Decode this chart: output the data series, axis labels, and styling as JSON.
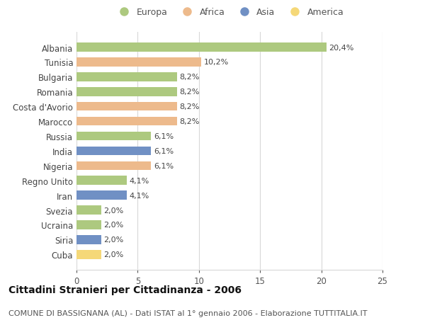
{
  "categories": [
    "Albania",
    "Tunisia",
    "Bulgaria",
    "Romania",
    "Costa d'Avorio",
    "Marocco",
    "Russia",
    "India",
    "Nigeria",
    "Regno Unito",
    "Iran",
    "Svezia",
    "Ucraina",
    "Siria",
    "Cuba"
  ],
  "values": [
    20.4,
    10.2,
    8.2,
    8.2,
    8.2,
    8.2,
    6.1,
    6.1,
    6.1,
    4.1,
    4.1,
    2.0,
    2.0,
    2.0,
    2.0
  ],
  "labels": [
    "20,4%",
    "10,2%",
    "8,2%",
    "8,2%",
    "8,2%",
    "8,2%",
    "6,1%",
    "6,1%",
    "6,1%",
    "4,1%",
    "4,1%",
    "2,0%",
    "2,0%",
    "2,0%",
    "2,0%"
  ],
  "continents": [
    "Europa",
    "Africa",
    "Europa",
    "Europa",
    "Africa",
    "Africa",
    "Europa",
    "Asia",
    "Africa",
    "Europa",
    "Asia",
    "Europa",
    "Europa",
    "Asia",
    "America"
  ],
  "colors": {
    "Europa": "#adc97f",
    "Africa": "#edba8c",
    "Asia": "#7090c4",
    "America": "#f5d878"
  },
  "legend_order": [
    "Europa",
    "Africa",
    "Asia",
    "America"
  ],
  "xlim": [
    0,
    25
  ],
  "xticks": [
    0,
    5,
    10,
    15,
    20,
    25
  ],
  "title": "Cittadini Stranieri per Cittadinanza - 2006",
  "subtitle": "COMUNE DI BASSIGNANA (AL) - Dati ISTAT al 1° gennaio 2006 - Elaborazione TUTTITALIA.IT",
  "background_color": "#ffffff",
  "grid_color": "#d8d8d8",
  "bar_height": 0.6,
  "title_fontsize": 10,
  "subtitle_fontsize": 8,
  "label_fontsize": 8,
  "tick_fontsize": 8.5,
  "legend_fontsize": 9
}
